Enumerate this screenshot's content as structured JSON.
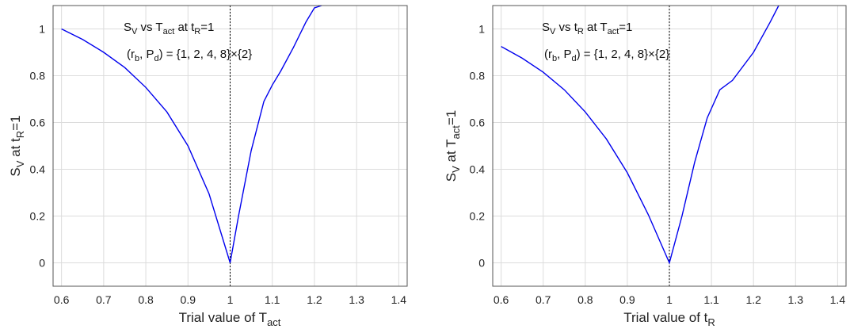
{
  "chart_data": [
    {
      "type": "line",
      "title": "",
      "xlim": [
        0.58,
        1.42
      ],
      "ylim": [
        -0.1,
        1.1
      ],
      "xticks": [
        0.6,
        0.7,
        0.8,
        0.9,
        1,
        1.1,
        1.2,
        1.3,
        1.4
      ],
      "yticks": [
        0,
        0.2,
        0.4,
        0.6,
        0.8,
        1
      ],
      "xtick_labels": [
        "0.6",
        "0.7",
        "0.8",
        "0.9",
        "1",
        "1.1",
        "1.2",
        "1.3",
        "1.4"
      ],
      "ytick_labels": [
        "0",
        "0.2",
        "0.4",
        "0.6",
        "0.8",
        "1"
      ],
      "grid": true,
      "xlabel": {
        "main": "Trial value of T",
        "sub": "act"
      },
      "ylabel": {
        "p1": "S",
        "s1": "V",
        "p2": " at t",
        "s2": "R",
        "p3": "=1"
      },
      "annotation_line1": {
        "p1": "S",
        "s1": "V",
        "p2": " vs T",
        "s2": "act",
        "p3": " at t",
        "s3": "R",
        "p4": "=1"
      },
      "annotation_line2": {
        "p1": "(r",
        "s1": "b",
        "p2": ", P",
        "s2": "d",
        "p3": ") = {1, 2, 4, 8}×{2}"
      },
      "vline_x": 1,
      "color": "#0000ee",
      "x": [
        0.6,
        0.65,
        0.7,
        0.75,
        0.8,
        0.85,
        0.9,
        0.95,
        1.0,
        1.02,
        1.05,
        1.08,
        1.1,
        1.12,
        1.15,
        1.18,
        1.2,
        1.217
      ],
      "y": [
        1.0,
        0.955,
        0.9,
        0.835,
        0.75,
        0.645,
        0.5,
        0.295,
        0.0,
        0.2,
        0.48,
        0.69,
        0.76,
        0.82,
        0.92,
        1.03,
        1.09,
        1.1
      ]
    },
    {
      "type": "line",
      "title": "",
      "xlim": [
        0.58,
        1.42
      ],
      "ylim": [
        -0.1,
        1.1
      ],
      "xticks": [
        0.6,
        0.7,
        0.8,
        0.9,
        1,
        1.1,
        1.2,
        1.3,
        1.4
      ],
      "yticks": [
        0,
        0.2,
        0.4,
        0.6,
        0.8,
        1
      ],
      "xtick_labels": [
        "0.6",
        "0.7",
        "0.8",
        "0.9",
        "1",
        "1.1",
        "1.2",
        "1.3",
        "1.4"
      ],
      "ytick_labels": [
        "0",
        "0.2",
        "0.4",
        "0.6",
        "0.8",
        "1"
      ],
      "grid": true,
      "xlabel": {
        "main": "Trial value of t",
        "sub": "R"
      },
      "ylabel": {
        "p1": "S",
        "s1": "V",
        "p2": " at T",
        "s2": "act",
        "p3": "=1"
      },
      "annotation_line1": {
        "p1": "S",
        "s1": "V",
        "p2": " vs t",
        "s2": "R",
        "p3": " at T",
        "s3": "act",
        "p4": "=1"
      },
      "annotation_line2": {
        "p1": "(r",
        "s1": "b",
        "p2": ", P",
        "s2": "d",
        "p3": ") = {1, 2, 4, 8}×{2}"
      },
      "vline_x": 1,
      "color": "#0000ee",
      "x": [
        0.6,
        0.65,
        0.7,
        0.75,
        0.8,
        0.85,
        0.9,
        0.95,
        1.0,
        1.03,
        1.06,
        1.09,
        1.12,
        1.15,
        1.2,
        1.24,
        1.26
      ],
      "y": [
        0.925,
        0.875,
        0.815,
        0.74,
        0.645,
        0.53,
        0.385,
        0.205,
        0.0,
        0.2,
        0.43,
        0.62,
        0.74,
        0.78,
        0.9,
        1.03,
        1.1
      ]
    }
  ]
}
